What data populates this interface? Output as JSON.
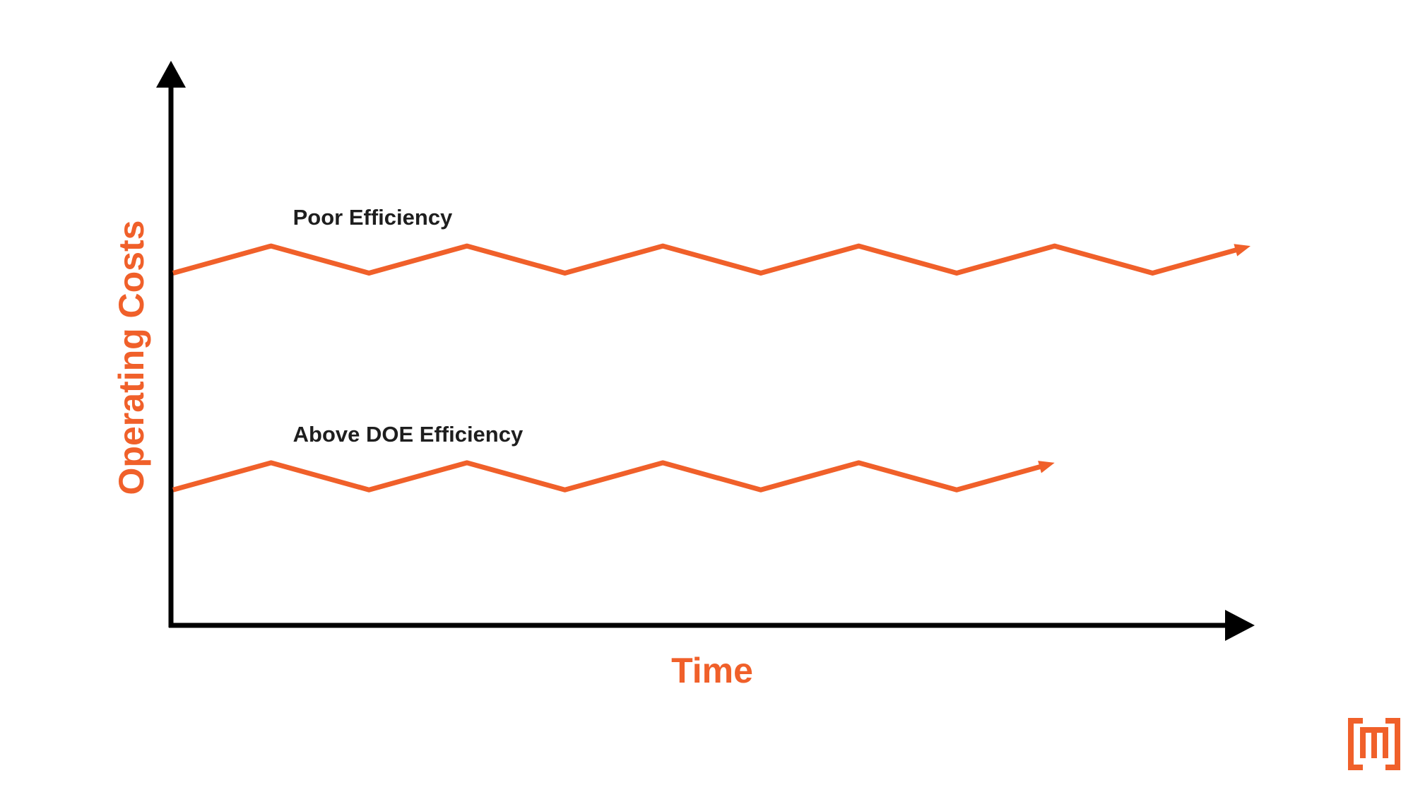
{
  "colors": {
    "accent": "#f0602a",
    "axis": "#000000",
    "label": "#1e1e1e"
  },
  "chart_data": {
    "type": "line",
    "title": "",
    "xlabel": "Time",
    "ylabel": "Operating Costs",
    "xlim": [
      0,
      11
    ],
    "ylim": [
      0,
      10
    ],
    "grid": false,
    "axis_ticks": false,
    "series": [
      {
        "name": "Poor Efficiency",
        "label": "Poor Efficiency",
        "x": [
          0,
          1,
          2,
          3,
          4,
          5,
          6,
          7,
          8,
          9,
          10,
          11
        ],
        "values": [
          6.5,
          7.0,
          6.5,
          7.0,
          6.5,
          7.0,
          6.5,
          7.0,
          6.5,
          7.0,
          6.5,
          7.0
        ],
        "arrow_end": true
      },
      {
        "name": "Above DOE Efficiency",
        "label": "Above DOE Efficiency",
        "x": [
          0,
          1,
          2,
          3,
          4,
          5,
          6,
          7,
          8,
          9
        ],
        "values": [
          2.5,
          3.0,
          2.5,
          3.0,
          2.5,
          3.0,
          2.5,
          3.0,
          2.5,
          3.0
        ],
        "arrow_end": true
      }
    ]
  },
  "logo": {
    "name": "brand-logo"
  }
}
